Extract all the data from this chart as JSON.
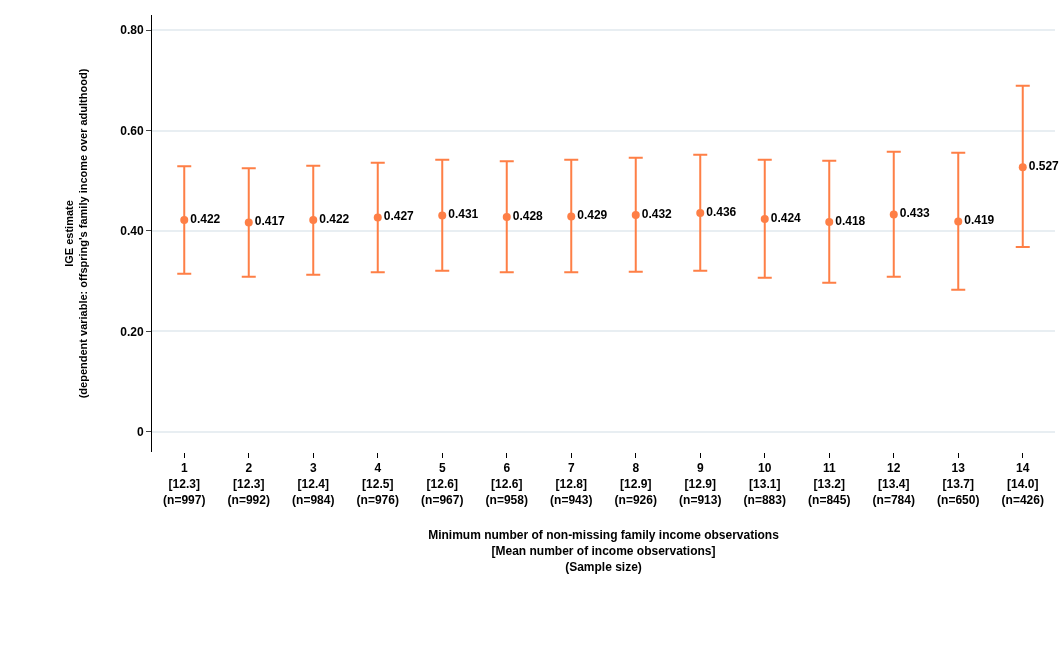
{
  "chart_data": {
    "type": "scatter",
    "categories": [
      "1\n[12.3]\n(n=997)",
      "2\n[12.3]\n(n=992)",
      "3\n[12.4]\n(n=984)",
      "4\n[12.5]\n(n=976)",
      "5\n[12.6]\n(n=967)",
      "6\n[12.6]\n(n=958)",
      "7\n[12.8]\n(n=943)",
      "8\n[12.9]\n(n=926)",
      "9\n[12.9]\n(n=913)",
      "10\n[13.1]\n(n=883)",
      "11\n[13.2]\n(n=845)",
      "12\n[13.4]\n(n=784)",
      "13\n[13.7]\n(n=650)",
      "14\n[14.0]\n(n=426)"
    ],
    "series": [
      {
        "color": "#fe7f46",
        "values": [
          0.422,
          0.417,
          0.422,
          0.427,
          0.431,
          0.428,
          0.429,
          0.432,
          0.436,
          0.424,
          0.418,
          0.433,
          0.419,
          0.527
        ],
        "errors": [
          [
            0.315,
            0.529
          ],
          [
            0.309,
            0.525
          ],
          [
            0.313,
            0.53
          ],
          [
            0.318,
            0.536
          ],
          [
            0.321,
            0.542
          ],
          [
            0.318,
            0.539
          ],
          [
            0.318,
            0.542
          ],
          [
            0.319,
            0.546
          ],
          [
            0.321,
            0.552
          ],
          [
            0.307,
            0.542
          ],
          [
            0.297,
            0.54
          ],
          [
            0.309,
            0.558
          ],
          [
            0.283,
            0.556
          ],
          [
            0.368,
            0.689
          ]
        ]
      }
    ],
    "xlabel": "Minimum number of non-missing family income observations\n[Mean number of income observations]\n(Sample size)",
    "ylabel": "IGE estimate\n(dependent variable: offspring's family income over adulthood)",
    "ylim": [
      -0.04,
      0.83
    ],
    "yticks": [
      {
        "value": 0,
        "label": "0"
      },
      {
        "value": 0.2,
        "label": "0.20"
      },
      {
        "value": 0.4,
        "label": "0.40"
      },
      {
        "value": 0.6,
        "label": "0.60"
      },
      {
        "value": 0.8,
        "label": "0.80"
      }
    ],
    "grid": "y",
    "data_labels": true,
    "marker": "circle"
  }
}
